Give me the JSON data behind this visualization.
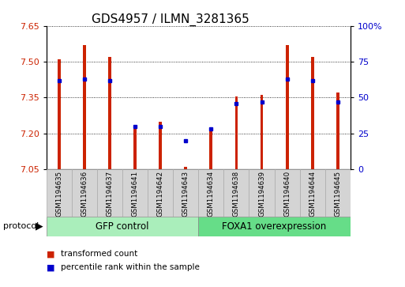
{
  "title": "GDS4957 / ILMN_3281365",
  "samples": [
    "GSM1194635",
    "GSM1194636",
    "GSM1194637",
    "GSM1194641",
    "GSM1194642",
    "GSM1194643",
    "GSM1194634",
    "GSM1194638",
    "GSM1194639",
    "GSM1194640",
    "GSM1194644",
    "GSM1194645"
  ],
  "transformed_count": [
    7.51,
    7.57,
    7.52,
    7.22,
    7.25,
    7.06,
    7.21,
    7.355,
    7.36,
    7.57,
    7.52,
    7.37
  ],
  "percentile_rank": [
    62,
    63,
    62,
    30,
    30,
    20,
    28,
    46,
    47,
    63,
    62,
    47
  ],
  "group_labels": [
    "GFP control",
    "FOXA1 overexpression"
  ],
  "ylim_left": [
    7.05,
    7.65
  ],
  "ylim_right": [
    0,
    100
  ],
  "yticks_left": [
    7.05,
    7.2,
    7.35,
    7.5,
    7.65
  ],
  "yticks_right": [
    0,
    25,
    50,
    75,
    100
  ],
  "bar_color": "#cc2200",
  "dot_color": "#0000cc",
  "bar_width": 0.12,
  "background_xtick": "#d4d4d4",
  "group_color_gfp": "#aaeebb",
  "group_color_foxa1": "#66dd88",
  "title_fontsize": 11,
  "tick_fontsize": 8,
  "legend_fontsize": 8
}
